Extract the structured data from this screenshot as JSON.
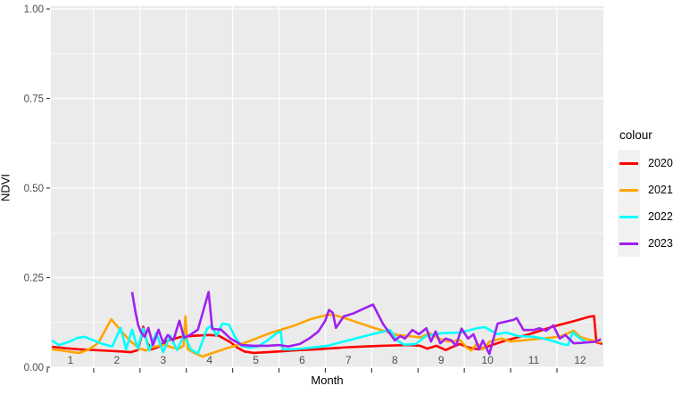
{
  "colors": {
    "page_bg": "#FFFFFF",
    "panel_bg": "#EBEBEB",
    "gridline": "#FFFFFF",
    "axis_text": "#4D4D4D",
    "title_text": "#000000",
    "tick_mark": "#333333",
    "legend_key_bg": "#F2F2F2"
  },
  "chart_data": {
    "type": "line",
    "title": "",
    "xlabel": "Month",
    "ylabel": "NDVI",
    "grid": "gray-panel-white-gridlines",
    "xlim_panel": [
      0.567,
      12.49
    ],
    "ylim_panel": [
      0,
      1.0075
    ],
    "x_tick_values": [
      1,
      2,
      3,
      4,
      5,
      6,
      7,
      8,
      9,
      10,
      11,
      12
    ],
    "x_tick_labels": [
      "1",
      "2",
      "3",
      "4",
      "5",
      "6",
      "7",
      "8",
      "9",
      "10",
      "11",
      "12"
    ],
    "x_gridline_values": [
      1.5,
      2.5,
      3.5,
      4.5,
      5.5,
      6.5,
      7.5,
      8.5,
      9.5,
      10.5,
      11.5
    ],
    "x_axis_tick_marks": [
      0.5,
      1.5,
      2.5,
      3.5,
      4.5,
      5.5,
      6.5,
      7.5,
      8.5,
      9.5,
      10.5,
      11.5
    ],
    "y_tick_values": [
      0,
      0.25,
      0.5,
      0.75,
      1.0
    ],
    "y_tick_labels": [
      "0.00",
      "0.25",
      "0.50",
      "0.75",
      "1.00"
    ],
    "y_minor_values": [
      0.125,
      0.375,
      0.625,
      0.875
    ],
    "legend": {
      "title": "colour",
      "position": "right",
      "entries": [
        {
          "label": "2020",
          "color": "#FF0000"
        },
        {
          "label": "2021",
          "color": "#FFA500"
        },
        {
          "label": "2022",
          "color": "#00FFFF"
        },
        {
          "label": "2023",
          "color": "#A020F0"
        }
      ]
    },
    "series": [
      {
        "name": "2020",
        "color": "#FF0000",
        "points": [
          [
            0.6,
            0.057
          ],
          [
            0.9,
            0.053
          ],
          [
            1.2,
            0.05
          ],
          [
            1.5,
            0.048
          ],
          [
            1.8,
            0.046
          ],
          [
            2.1,
            0.044
          ],
          [
            2.3,
            0.042
          ],
          [
            2.45,
            0.048
          ],
          [
            2.52,
            0.08
          ],
          [
            2.57,
            0.113
          ],
          [
            2.65,
            0.07
          ],
          [
            2.75,
            0.05
          ],
          [
            2.9,
            0.057
          ],
          [
            3.1,
            0.075
          ],
          [
            3.4,
            0.085
          ],
          [
            3.7,
            0.088
          ],
          [
            4.0,
            0.09
          ],
          [
            4.2,
            0.088
          ],
          [
            4.45,
            0.07
          ],
          [
            4.6,
            0.055
          ],
          [
            4.75,
            0.044
          ],
          [
            4.95,
            0.04
          ],
          [
            5.25,
            0.042
          ],
          [
            5.6,
            0.045
          ],
          [
            5.95,
            0.048
          ],
          [
            6.3,
            0.05
          ],
          [
            6.65,
            0.053
          ],
          [
            7.0,
            0.056
          ],
          [
            7.35,
            0.058
          ],
          [
            7.7,
            0.06
          ],
          [
            8.0,
            0.061
          ],
          [
            8.3,
            0.062
          ],
          [
            8.55,
            0.06
          ],
          [
            8.7,
            0.052
          ],
          [
            8.9,
            0.06
          ],
          [
            9.1,
            0.048
          ],
          [
            9.25,
            0.057
          ],
          [
            9.4,
            0.065
          ],
          [
            9.6,
            0.055
          ],
          [
            9.8,
            0.05
          ],
          [
            10.0,
            0.058
          ],
          [
            10.4,
            0.075
          ],
          [
            10.9,
            0.092
          ],
          [
            11.4,
            0.113
          ],
          [
            11.9,
            0.13
          ],
          [
            12.2,
            0.141
          ],
          [
            12.3,
            0.143
          ],
          [
            12.35,
            0.07
          ],
          [
            12.48,
            0.065
          ]
        ]
      },
      {
        "name": "2021",
        "color": "#FFA500",
        "points": [
          [
            0.6,
            0.05
          ],
          [
            0.85,
            0.046
          ],
          [
            1.05,
            0.042
          ],
          [
            1.2,
            0.04
          ],
          [
            1.4,
            0.05
          ],
          [
            1.6,
            0.068
          ],
          [
            1.88,
            0.134
          ],
          [
            2.1,
            0.1
          ],
          [
            2.3,
            0.072
          ],
          [
            2.5,
            0.052
          ],
          [
            2.62,
            0.047
          ],
          [
            2.75,
            0.055
          ],
          [
            2.9,
            0.06
          ],
          [
            3.05,
            0.062
          ],
          [
            3.2,
            0.055
          ],
          [
            3.35,
            0.052
          ],
          [
            3.44,
            0.06
          ],
          [
            3.48,
            0.142
          ],
          [
            3.53,
            0.05
          ],
          [
            3.7,
            0.038
          ],
          [
            3.85,
            0.03
          ],
          [
            4.3,
            0.05
          ],
          [
            4.8,
            0.07
          ],
          [
            5.3,
            0.095
          ],
          [
            5.8,
            0.115
          ],
          [
            6.2,
            0.135
          ],
          [
            6.5,
            0.145
          ],
          [
            6.65,
            0.147
          ],
          [
            6.9,
            0.138
          ],
          [
            7.2,
            0.125
          ],
          [
            7.5,
            0.112
          ],
          [
            7.8,
            0.1
          ],
          [
            8.05,
            0.09
          ],
          [
            8.3,
            0.087
          ],
          [
            8.55,
            0.083
          ],
          [
            8.75,
            0.095
          ],
          [
            8.95,
            0.08
          ],
          [
            9.15,
            0.072
          ],
          [
            9.42,
            0.075
          ],
          [
            9.55,
            0.055
          ],
          [
            9.65,
            0.047
          ],
          [
            9.78,
            0.067
          ],
          [
            9.9,
            0.05
          ],
          [
            10.05,
            0.072
          ],
          [
            10.3,
            0.08
          ],
          [
            10.5,
            0.072
          ],
          [
            10.75,
            0.075
          ],
          [
            11.0,
            0.078
          ],
          [
            11.2,
            0.08
          ],
          [
            11.4,
            0.083
          ],
          [
            11.6,
            0.087
          ],
          [
            11.86,
            0.102
          ],
          [
            12.0,
            0.085
          ],
          [
            12.15,
            0.078
          ],
          [
            12.3,
            0.074
          ],
          [
            12.45,
            0.069
          ]
        ]
      },
      {
        "name": "2022",
        "color": "#00FFFF",
        "points": [
          [
            0.6,
            0.075
          ],
          [
            0.75,
            0.062
          ],
          [
            0.95,
            0.07
          ],
          [
            1.15,
            0.082
          ],
          [
            1.3,
            0.085
          ],
          [
            1.5,
            0.075
          ],
          [
            1.7,
            0.065
          ],
          [
            1.9,
            0.058
          ],
          [
            2.08,
            0.11
          ],
          [
            2.2,
            0.05
          ],
          [
            2.33,
            0.105
          ],
          [
            2.45,
            0.052
          ],
          [
            2.57,
            0.108
          ],
          [
            2.7,
            0.047
          ],
          [
            2.85,
            0.095
          ],
          [
            3.0,
            0.042
          ],
          [
            3.15,
            0.088
          ],
          [
            3.3,
            0.048
          ],
          [
            3.45,
            0.09
          ],
          [
            3.6,
            0.05
          ],
          [
            3.75,
            0.038
          ],
          [
            3.95,
            0.108
          ],
          [
            4.05,
            0.117
          ],
          [
            4.15,
            0.088
          ],
          [
            4.28,
            0.122
          ],
          [
            4.42,
            0.119
          ],
          [
            4.55,
            0.085
          ],
          [
            4.68,
            0.06
          ],
          [
            4.85,
            0.055
          ],
          [
            5.05,
            0.058
          ],
          [
            5.25,
            0.075
          ],
          [
            5.45,
            0.095
          ],
          [
            5.54,
            0.1
          ],
          [
            5.58,
            0.05
          ],
          [
            5.75,
            0.05
          ],
          [
            6.0,
            0.052
          ],
          [
            6.2,
            0.055
          ],
          [
            6.55,
            0.06
          ],
          [
            6.9,
            0.072
          ],
          [
            7.3,
            0.085
          ],
          [
            7.6,
            0.095
          ],
          [
            7.9,
            0.104
          ],
          [
            8.05,
            0.075
          ],
          [
            8.2,
            0.063
          ],
          [
            8.45,
            0.065
          ],
          [
            8.67,
            0.087
          ],
          [
            9.0,
            0.095
          ],
          [
            9.42,
            0.097
          ],
          [
            9.77,
            0.109
          ],
          [
            9.94,
            0.112
          ],
          [
            10.22,
            0.092
          ],
          [
            10.4,
            0.097
          ],
          [
            10.67,
            0.087
          ],
          [
            11.0,
            0.085
          ],
          [
            11.2,
            0.08
          ],
          [
            11.45,
            0.072
          ],
          [
            11.6,
            0.065
          ],
          [
            11.74,
            0.062
          ],
          [
            11.84,
            0.097
          ],
          [
            12.0,
            0.08
          ],
          [
            12.1,
            0.072
          ],
          [
            12.17,
            0.068
          ]
        ]
      },
      {
        "name": "2023",
        "color": "#A020F0",
        "points": [
          [
            2.33,
            0.21
          ],
          [
            2.4,
            0.155
          ],
          [
            2.46,
            0.118
          ],
          [
            2.52,
            0.098
          ],
          [
            2.6,
            0.085
          ],
          [
            2.68,
            0.11
          ],
          [
            2.78,
            0.062
          ],
          [
            2.9,
            0.105
          ],
          [
            3.0,
            0.068
          ],
          [
            3.1,
            0.09
          ],
          [
            3.22,
            0.075
          ],
          [
            3.35,
            0.13
          ],
          [
            3.45,
            0.082
          ],
          [
            3.58,
            0.09
          ],
          [
            3.75,
            0.105
          ],
          [
            3.87,
            0.16
          ],
          [
            3.98,
            0.21
          ],
          [
            4.06,
            0.107
          ],
          [
            4.25,
            0.105
          ],
          [
            4.45,
            0.08
          ],
          [
            4.7,
            0.062
          ],
          [
            4.95,
            0.06
          ],
          [
            5.25,
            0.06
          ],
          [
            5.5,
            0.062
          ],
          [
            5.7,
            0.058
          ],
          [
            5.95,
            0.065
          ],
          [
            6.15,
            0.08
          ],
          [
            6.35,
            0.1
          ],
          [
            6.5,
            0.13
          ],
          [
            6.58,
            0.16
          ],
          [
            6.66,
            0.152
          ],
          [
            6.73,
            0.11
          ],
          [
            6.9,
            0.142
          ],
          [
            7.1,
            0.15
          ],
          [
            7.3,
            0.162
          ],
          [
            7.53,
            0.175
          ],
          [
            7.75,
            0.12
          ],
          [
            8.0,
            0.075
          ],
          [
            8.12,
            0.087
          ],
          [
            8.22,
            0.08
          ],
          [
            8.38,
            0.104
          ],
          [
            8.52,
            0.092
          ],
          [
            8.68,
            0.109
          ],
          [
            8.78,
            0.072
          ],
          [
            8.88,
            0.1
          ],
          [
            8.98,
            0.067
          ],
          [
            9.1,
            0.08
          ],
          [
            9.22,
            0.075
          ],
          [
            9.32,
            0.06
          ],
          [
            9.44,
            0.108
          ],
          [
            9.58,
            0.08
          ],
          [
            9.7,
            0.092
          ],
          [
            9.82,
            0.05
          ],
          [
            9.9,
            0.075
          ],
          [
            10.04,
            0.037
          ],
          [
            10.22,
            0.122
          ],
          [
            10.42,
            0.128
          ],
          [
            10.56,
            0.132
          ],
          [
            10.63,
            0.137
          ],
          [
            10.78,
            0.104
          ],
          [
            11.0,
            0.104
          ],
          [
            11.12,
            0.109
          ],
          [
            11.27,
            0.102
          ],
          [
            11.42,
            0.117
          ],
          [
            11.56,
            0.08
          ],
          [
            11.68,
            0.09
          ],
          [
            11.86,
            0.067
          ],
          [
            12.02,
            0.068
          ],
          [
            12.18,
            0.07
          ],
          [
            12.32,
            0.071
          ],
          [
            12.45,
            0.078
          ]
        ]
      }
    ]
  }
}
